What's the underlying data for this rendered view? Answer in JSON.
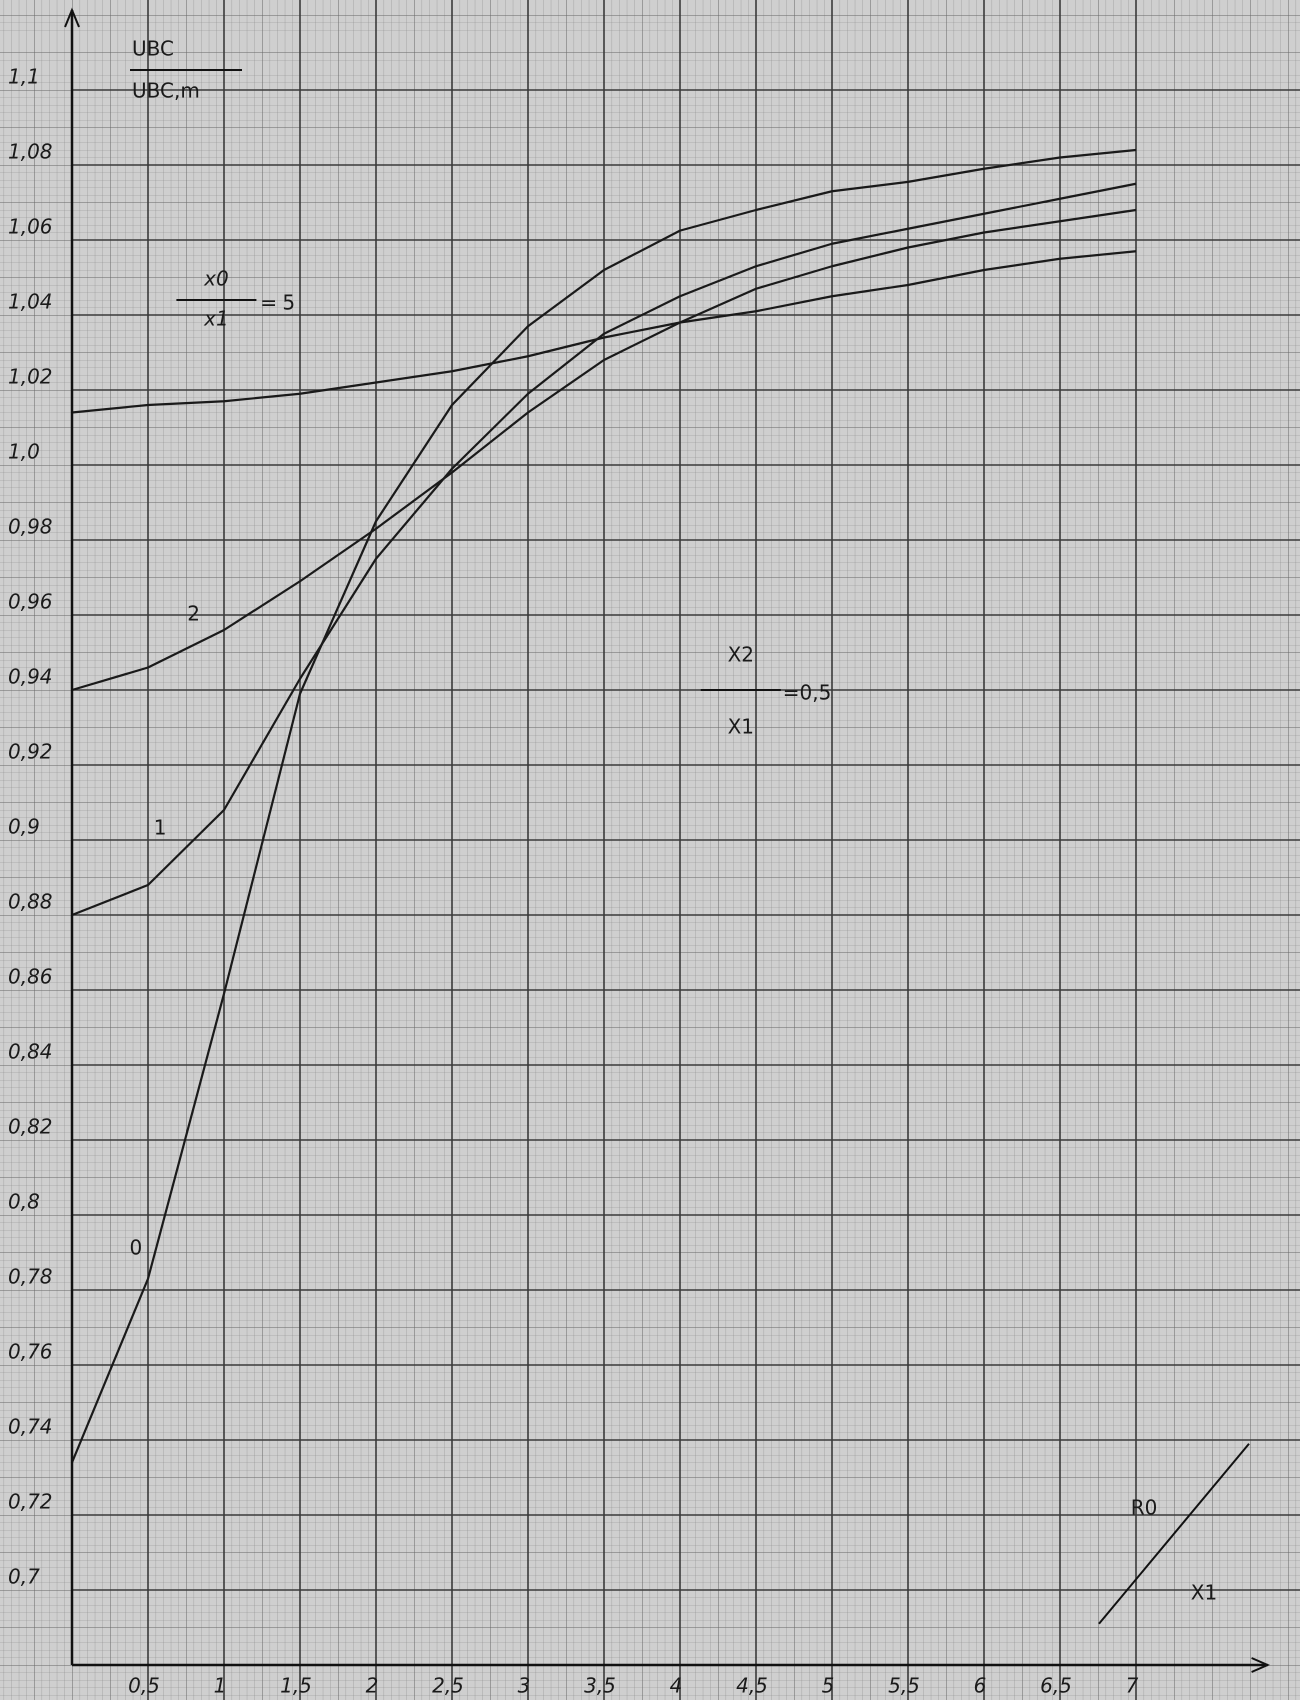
{
  "chart_data": {
    "type": "line",
    "y_label": {
      "numerator": "UBC",
      "denominator": "UBC,m"
    },
    "x_label": {
      "numerator": "R0",
      "denominator": "X1"
    },
    "annotation": {
      "numerator": "X2",
      "denominator": "X1",
      "text": "=0,5"
    },
    "param_label": {
      "numerator": "x0",
      "denominator": "x1",
      "equals": "="
    },
    "x": [
      0,
      0.5,
      1,
      1.5,
      2,
      2.5,
      3,
      3.5,
      4,
      4.5,
      5,
      5.5,
      6,
      6.5,
      7
    ],
    "series": [
      {
        "name": "0",
        "color": "#1a1a1a",
        "values": [
          0.734,
          0.783,
          0.859,
          0.939,
          0.985,
          1.016,
          1.037,
          1.052,
          1.0625,
          1.068,
          1.073,
          1.0755,
          1.079,
          1.082,
          1.084
        ]
      },
      {
        "name": "1",
        "color": "#1a1a1a",
        "values": [
          0.88,
          0.888,
          0.908,
          0.943,
          0.975,
          0.999,
          1.019,
          1.035,
          1.045,
          1.053,
          1.059,
          1.063,
          1.067,
          1.071,
          1.075
        ]
      },
      {
        "name": "2",
        "color": "#1a1a1a",
        "values": [
          0.94,
          0.946,
          0.956,
          0.969,
          0.983,
          0.998,
          1.014,
          1.028,
          1.038,
          1.047,
          1.053,
          1.058,
          1.062,
          1.065,
          1.068
        ]
      },
      {
        "name": "5",
        "color": "#1a1a1a",
        "values": [
          1.014,
          1.016,
          1.017,
          1.019,
          1.022,
          1.025,
          1.029,
          1.034,
          1.038,
          1.041,
          1.045,
          1.048,
          1.052,
          1.055,
          1.057
        ]
      }
    ],
    "xlim": [
      0,
      7.8
    ],
    "ylim": [
      0.68,
      1.12
    ],
    "xticks": [
      {
        "value": 0.5,
        "label": "0,5"
      },
      1,
      {
        "value": 1.5,
        "label": "1,5"
      },
      2,
      {
        "value": 2.5,
        "label": "2,5"
      },
      3,
      {
        "value": 3.5,
        "label": "3,5"
      },
      4,
      {
        "value": 4.5,
        "label": "4,5"
      },
      5,
      {
        "value": 5.5,
        "label": "5,5"
      },
      6,
      {
        "value": 6.5,
        "label": "6,5"
      },
      7
    ],
    "yticks": [
      {
        "value": 0.7,
        "label": "0,7"
      },
      {
        "value": 0.72,
        "label": "0,72"
      },
      {
        "value": 0.74,
        "label": "0,74"
      },
      {
        "value": 0.76,
        "label": "0,76"
      },
      {
        "value": 0.78,
        "label": "0,78"
      },
      {
        "value": 0.8,
        "label": "0,8"
      },
      {
        "value": 0.82,
        "label": "0,82"
      },
      {
        "value": 0.84,
        "label": "0,84"
      },
      {
        "value": 0.86,
        "label": "0,86"
      },
      {
        "value": 0.88,
        "label": "0,88"
      },
      {
        "value": 0.9,
        "label": "0,9"
      },
      {
        "value": 0.92,
        "label": "0,92"
      },
      {
        "value": 0.94,
        "label": "0,94"
      },
      {
        "value": 0.96,
        "label": "0,96"
      },
      {
        "value": 0.98,
        "label": "0,98"
      },
      {
        "value": 1.0,
        "label": "1,0"
      },
      {
        "value": 1.02,
        "label": "1,02"
      },
      {
        "value": 1.04,
        "label": "1,04"
      },
      {
        "value": 1.06,
        "label": "1,06"
      },
      {
        "value": 1.08,
        "label": "1,08"
      },
      {
        "value": 1.1,
        "label": "1,1"
      }
    ],
    "grid": true
  }
}
